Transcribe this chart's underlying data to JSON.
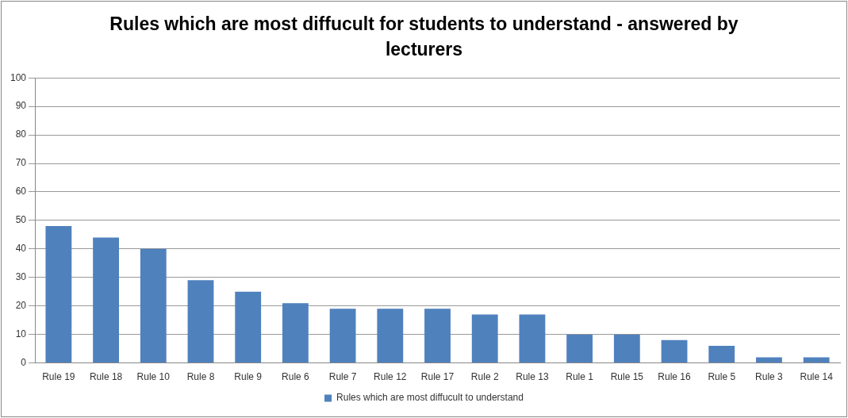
{
  "chart_data": {
    "type": "bar",
    "title": "Rules which are most diffucult for students to understand - answered by lecturers",
    "categories": [
      "Rule 19",
      "Rule 18",
      "Rule 10",
      "Rule 8",
      "Rule 9",
      "Rule 6",
      "Rule 7",
      "Rule 12",
      "Rule 17",
      "Rule 2",
      "Rule 13",
      "Rule 1",
      "Rule 15",
      "Rule 16",
      "Rule 5",
      "Rule 3",
      "Rule 14"
    ],
    "series": [
      {
        "name": "Rules which are most diffucult to understand",
        "color": "#4f81bd",
        "values": [
          48,
          44,
          40,
          29,
          25,
          21,
          19,
          19,
          19,
          17,
          17,
          10,
          10,
          8,
          6,
          2,
          2
        ]
      }
    ],
    "ylim": [
      0,
      100
    ],
    "yticks": [
      0,
      10,
      20,
      30,
      40,
      50,
      60,
      70,
      80,
      90,
      100
    ],
    "grid": "y",
    "legend": "bottom"
  }
}
